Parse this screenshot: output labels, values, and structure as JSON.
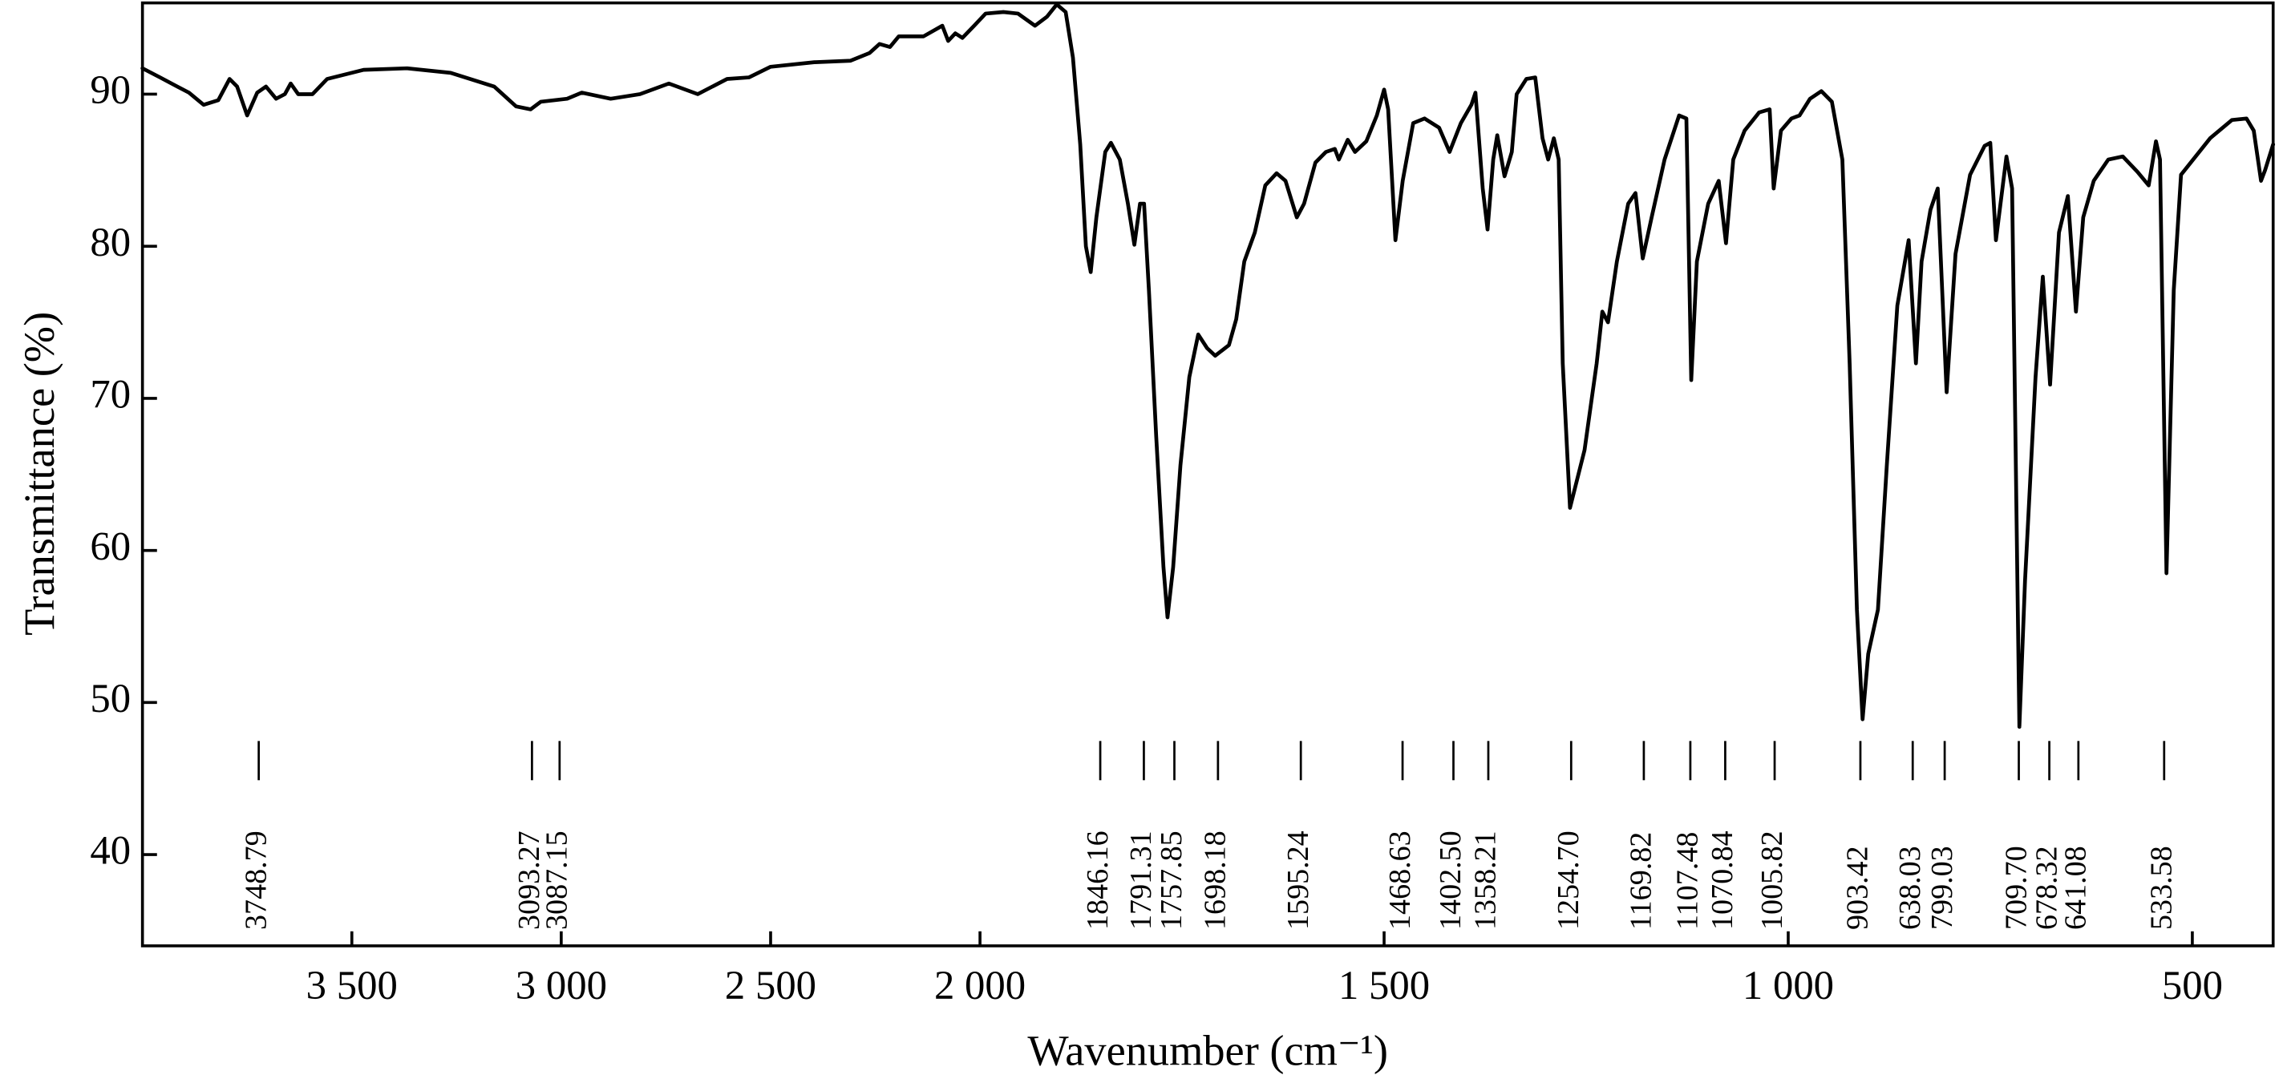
{
  "chart_data": {
    "type": "line",
    "x_label": "Wavenumber (cm⁻¹)",
    "y_label": "Transmittance (%)",
    "xlim": [
      4000,
      400
    ],
    "x_scale_break": 2000,
    "ylim": [
      34,
      96
    ],
    "xticks": [
      {
        "value": 3500,
        "label": "3 500"
      },
      {
        "value": 3000,
        "label": "3 000"
      },
      {
        "value": 2500,
        "label": "2 500"
      },
      {
        "value": 2000,
        "label": "2 000"
      },
      {
        "value": 1500,
        "label": "1 500"
      },
      {
        "value": 1000,
        "label": "1 000"
      },
      500
    ],
    "yticks": [
      40,
      50,
      60,
      70,
      80,
      90
    ],
    "color": "#000000",
    "peak_labels": [
      "3748.79",
      "3093.27",
      "3087.15",
      "1846.16",
      "1791.31",
      "1757.85",
      "1698.18",
      "1595.24",
      "1468.63",
      "1402.50",
      "1358.21",
      "1254.70",
      "1169.82",
      "1107.48",
      "1070.84",
      "1005.82",
      "903.42",
      "638.03",
      "799.03",
      "709.70",
      "678.32",
      "641.08",
      "533.58"
    ],
    "x": [
      4000,
      3958,
      3917,
      3889,
      3854,
      3819,
      3792,
      3774,
      3750,
      3726,
      3705,
      3681,
      3660,
      3646,
      3628,
      3594,
      3559,
      3472,
      3368,
      3264,
      3160,
      3108,
      3073,
      3049,
      2986,
      2951,
      2882,
      2812,
      2743,
      2674,
      2604,
      2552,
      2500,
      2396,
      2309,
      2264,
      2240,
      2215,
      2194,
      2135,
      2090,
      2076,
      2059,
      2042,
      2014,
      1993,
      1971,
      1953,
      1932,
      1917,
      1905,
      1894,
      1885,
      1876,
      1869,
      1863,
      1856,
      1845,
      1838,
      1827,
      1817,
      1809,
      1802,
      1797,
      1791,
      1782,
      1773,
      1768,
      1761,
      1752,
      1741,
      1730,
      1719,
      1709,
      1692,
      1683,
      1673,
      1660,
      1647,
      1633,
      1622,
      1608,
      1599,
      1585,
      1572,
      1561,
      1556,
      1545,
      1536,
      1522,
      1509,
      1500,
      1495,
      1486,
      1477,
      1464,
      1450,
      1432,
      1419,
      1405,
      1392,
      1387,
      1378,
      1372,
      1365,
      1360,
      1351,
      1342,
      1336,
      1324,
      1313,
      1304,
      1297,
      1290,
      1284,
      1279,
      1270,
      1261,
      1252,
      1237,
      1230,
      1223,
      1212,
      1198,
      1189,
      1180,
      1169,
      1153,
      1135,
      1126,
      1120,
      1113,
      1099,
      1086,
      1077,
      1068,
      1054,
      1036,
      1023,
      1018,
      1009,
      996,
      986,
      973,
      959,
      946,
      933,
      924,
      915,
      908,
      901,
      889,
      878,
      865,
      851,
      842,
      835,
      824,
      815,
      804,
      793,
      775,
      757,
      750,
      743,
      730,
      723,
      714,
      707,
      694,
      685,
      676,
      665,
      654,
      644,
      635,
      622,
      604,
      586,
      568,
      554,
      545,
      540,
      532,
      523,
      514,
      478,
      451,
      433,
      424,
      415,
      410,
      400
    ],
    "values": [
      91.7,
      91.1,
      90.5,
      90.1,
      89.3,
      89.6,
      91.0,
      90.5,
      88.6,
      90.1,
      90.5,
      89.7,
      90.0,
      90.7,
      90.0,
      90.0,
      91.0,
      91.6,
      91.7,
      91.4,
      90.5,
      89.2,
      89.0,
      89.5,
      89.7,
      90.1,
      89.7,
      90.0,
      90.7,
      90.0,
      91.0,
      91.1,
      91.8,
      92.1,
      92.2,
      92.7,
      93.3,
      93.1,
      93.8,
      93.8,
      94.5,
      93.5,
      94.0,
      93.7,
      94.5,
      95.3,
      95.4,
      95.3,
      94.5,
      95.1,
      95.9,
      95.4,
      92.4,
      86.7,
      80.0,
      78.3,
      81.9,
      86.2,
      86.8,
      85.7,
      82.8,
      80.1,
      82.8,
      82.8,
      77.1,
      67.5,
      58.9,
      55.6,
      58.9,
      65.6,
      71.4,
      74.2,
      73.3,
      72.8,
      73.5,
      75.2,
      79.0,
      80.9,
      84.0,
      84.8,
      84.3,
      81.9,
      82.8,
      85.5,
      86.2,
      86.4,
      85.7,
      87.0,
      86.2,
      86.9,
      88.6,
      90.3,
      89.0,
      80.4,
      84.3,
      88.1,
      88.4,
      87.8,
      86.2,
      88.1,
      89.3,
      90.1,
      83.8,
      81.1,
      85.7,
      87.3,
      84.6,
      86.2,
      90.0,
      91.0,
      91.1,
      87.1,
      85.7,
      87.1,
      85.7,
      72.3,
      62.8,
      64.7,
      66.6,
      72.3,
      75.7,
      75.0,
      79.0,
      82.8,
      83.5,
      79.2,
      81.9,
      85.7,
      88.6,
      88.4,
      71.2,
      79.0,
      82.8,
      84.3,
      80.2,
      85.7,
      87.6,
      88.8,
      89.0,
      83.8,
      87.6,
      88.4,
      88.6,
      89.7,
      90.2,
      89.5,
      85.7,
      72.3,
      56.1,
      48.9,
      53.2,
      56.1,
      65.6,
      76.1,
      80.4,
      72.3,
      79.0,
      82.4,
      83.8,
      70.4,
      79.5,
      84.7,
      86.6,
      86.8,
      80.4,
      85.9,
      83.8,
      48.4,
      58.0,
      71.4,
      78.0,
      70.9,
      80.9,
      83.3,
      75.7,
      81.9,
      84.3,
      85.7,
      85.9,
      84.9,
      84.0,
      86.9,
      85.7,
      58.5,
      77.1,
      84.7,
      87.1,
      88.3,
      88.4,
      87.6,
      84.3,
      85.0,
      86.7
    ]
  }
}
